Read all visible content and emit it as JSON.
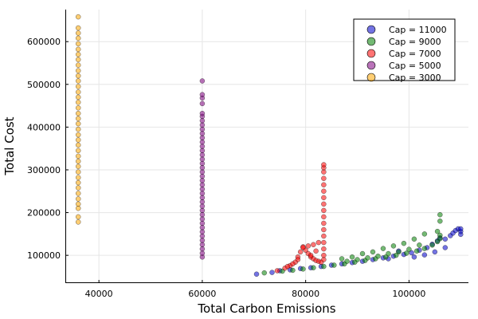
{
  "chart_data": {
    "type": "scatter",
    "title": "",
    "xlabel": "Total Carbon Emissions",
    "ylabel": "Total Cost",
    "xlim": [
      33500,
      111500
    ],
    "ylim": [
      35000,
      675000
    ],
    "xticks": [
      40000,
      60000,
      80000,
      100000
    ],
    "yticks": [
      100000,
      200000,
      300000,
      400000,
      500000,
      600000
    ],
    "xtick_labels": [
      "40000",
      "60000",
      "80000",
      "100000"
    ],
    "ytick_labels": [
      "100000",
      "200000",
      "300000",
      "400000",
      "500000",
      "600000"
    ],
    "grid": true,
    "legend_position": "top-right",
    "series": [
      {
        "name": "Cap = 11000",
        "color": "#0000cc",
        "points": [
          [
            70500,
            56000
          ],
          [
            73500,
            60000
          ],
          [
            75000,
            64000
          ],
          [
            77000,
            66000
          ],
          [
            79000,
            69000
          ],
          [
            81000,
            71000
          ],
          [
            83000,
            74000
          ],
          [
            85000,
            77000
          ],
          [
            87000,
            80000
          ],
          [
            89000,
            83000
          ],
          [
            91000,
            86000
          ],
          [
            93000,
            90000
          ],
          [
            95000,
            94000
          ],
          [
            97000,
            98000
          ],
          [
            99000,
            102000
          ],
          [
            100500,
            106000
          ],
          [
            102000,
            112000
          ],
          [
            103500,
            118000
          ],
          [
            104500,
            126000
          ],
          [
            105500,
            134000
          ],
          [
            106000,
            141000
          ],
          [
            107000,
            138000
          ],
          [
            108000,
            146000
          ],
          [
            108500,
            152000
          ],
          [
            109000,
            158000
          ],
          [
            109500,
            162000
          ],
          [
            110000,
            149000
          ],
          [
            110000,
            156000
          ],
          [
            110000,
            162000
          ],
          [
            98000,
            110000
          ],
          [
            101000,
            96000
          ],
          [
            103000,
            101000
          ],
          [
            105000,
            108000
          ],
          [
            107000,
            118000
          ],
          [
            96000,
            92000
          ]
        ]
      },
      {
        "name": "Cap = 9000",
        "color": "#008000",
        "points": [
          [
            72000,
            59000
          ],
          [
            75500,
            63000
          ],
          [
            77500,
            65000
          ],
          [
            79500,
            68000
          ],
          [
            81500,
            71000
          ],
          [
            83500,
            74000
          ],
          [
            85500,
            77000
          ],
          [
            87500,
            80000
          ],
          [
            89500,
            84000
          ],
          [
            91500,
            88000
          ],
          [
            93500,
            92000
          ],
          [
            95500,
            96000
          ],
          [
            97500,
            100000
          ],
          [
            99500,
            105000
          ],
          [
            101500,
            110000
          ],
          [
            103000,
            116000
          ],
          [
            104500,
            124000
          ],
          [
            105500,
            132000
          ],
          [
            106000,
            139000
          ],
          [
            106000,
            147000
          ],
          [
            105500,
            156000
          ],
          [
            106000,
            180000
          ],
          [
            106000,
            195000
          ],
          [
            103000,
            150000
          ],
          [
            101000,
            138000
          ],
          [
            99000,
            128000
          ],
          [
            97000,
            122000
          ],
          [
            95000,
            116000
          ],
          [
            93000,
            108000
          ],
          [
            91000,
            104000
          ],
          [
            89000,
            96000
          ],
          [
            87000,
            92000
          ],
          [
            88000,
            86000
          ],
          [
            90000,
            90000
          ],
          [
            92000,
            94000
          ],
          [
            94000,
            98000
          ],
          [
            96000,
            104000
          ],
          [
            98000,
            108000
          ],
          [
            100000,
            114000
          ],
          [
            102000,
            124000
          ]
        ]
      },
      {
        "name": "Cap = 7000",
        "color": "#ff0000",
        "points": [
          [
            74500,
            64000
          ],
          [
            76000,
            70000
          ],
          [
            77000,
            76000
          ],
          [
            78000,
            84000
          ],
          [
            78500,
            96000
          ],
          [
            79000,
            108000
          ],
          [
            79500,
            120000
          ],
          [
            80000,
            112000
          ],
          [
            80500,
            104000
          ],
          [
            81000,
            96000
          ],
          [
            81500,
            92000
          ],
          [
            82000,
            88000
          ],
          [
            82500,
            86000
          ],
          [
            83000,
            84000
          ],
          [
            83500,
            90000
          ],
          [
            83500,
            100000
          ],
          [
            83500,
            115000
          ],
          [
            83500,
            130000
          ],
          [
            83500,
            145000
          ],
          [
            83500,
            160000
          ],
          [
            83500,
            175000
          ],
          [
            83500,
            190000
          ],
          [
            83500,
            205000
          ],
          [
            83500,
            220000
          ],
          [
            83500,
            235000
          ],
          [
            83500,
            250000
          ],
          [
            83500,
            265000
          ],
          [
            83500,
            280000
          ],
          [
            83500,
            295000
          ],
          [
            83500,
            305000
          ],
          [
            83500,
            312000
          ],
          [
            82500,
            130000
          ],
          [
            81500,
            125000
          ],
          [
            80500,
            122000
          ],
          [
            79500,
            118000
          ],
          [
            78500,
            90000
          ],
          [
            77500,
            80000
          ],
          [
            76500,
            74000
          ],
          [
            82000,
            110000
          ],
          [
            81000,
            100000
          ]
        ]
      },
      {
        "name": "Cap = 5000",
        "color": "#800080",
        "points": [
          [
            60000,
            96000
          ],
          [
            60000,
            105000
          ],
          [
            60000,
            115000
          ],
          [
            60000,
            125000
          ],
          [
            60000,
            135000
          ],
          [
            60000,
            145000
          ],
          [
            60000,
            155000
          ],
          [
            60000,
            165000
          ],
          [
            60000,
            175000
          ],
          [
            60000,
            185000
          ],
          [
            60000,
            195000
          ],
          [
            60000,
            205000
          ],
          [
            60000,
            215000
          ],
          [
            60000,
            225000
          ],
          [
            60000,
            235000
          ],
          [
            60000,
            245000
          ],
          [
            60000,
            255000
          ],
          [
            60000,
            265000
          ],
          [
            60000,
            275000
          ],
          [
            60000,
            285000
          ],
          [
            60000,
            295000
          ],
          [
            60000,
            305000
          ],
          [
            60000,
            315000
          ],
          [
            60000,
            325000
          ],
          [
            60000,
            335000
          ],
          [
            60000,
            345000
          ],
          [
            60000,
            355000
          ],
          [
            60000,
            365000
          ],
          [
            60000,
            375000
          ],
          [
            60000,
            385000
          ],
          [
            60000,
            395000
          ],
          [
            60000,
            405000
          ],
          [
            60000,
            415000
          ],
          [
            60000,
            425000
          ],
          [
            60000,
            432000
          ],
          [
            60000,
            455000
          ],
          [
            60000,
            468000
          ],
          [
            60000,
            476000
          ],
          [
            60000,
            508000
          ]
        ]
      },
      {
        "name": "Cap = 3000",
        "color": "#ffa500",
        "points": [
          [
            36000,
            178000
          ],
          [
            36000,
            190000
          ],
          [
            36000,
            210000
          ],
          [
            36000,
            220000
          ],
          [
            36000,
            232000
          ],
          [
            36000,
            245000
          ],
          [
            36000,
            258000
          ],
          [
            36000,
            270000
          ],
          [
            36000,
            282000
          ],
          [
            36000,
            295000
          ],
          [
            36000,
            308000
          ],
          [
            36000,
            320000
          ],
          [
            36000,
            332000
          ],
          [
            36000,
            345000
          ],
          [
            36000,
            358000
          ],
          [
            36000,
            370000
          ],
          [
            36000,
            382000
          ],
          [
            36000,
            395000
          ],
          [
            36000,
            408000
          ],
          [
            36000,
            420000
          ],
          [
            36000,
            432000
          ],
          [
            36000,
            445000
          ],
          [
            36000,
            458000
          ],
          [
            36000,
            470000
          ],
          [
            36000,
            482000
          ],
          [
            36000,
            495000
          ],
          [
            36000,
            508000
          ],
          [
            36000,
            520000
          ],
          [
            36000,
            532000
          ],
          [
            36000,
            545000
          ],
          [
            36000,
            558000
          ],
          [
            36000,
            570000
          ],
          [
            36000,
            582000
          ],
          [
            36000,
            595000
          ],
          [
            36000,
            608000
          ],
          [
            36000,
            620000
          ],
          [
            36000,
            632000
          ],
          [
            36000,
            658000
          ]
        ]
      }
    ]
  }
}
